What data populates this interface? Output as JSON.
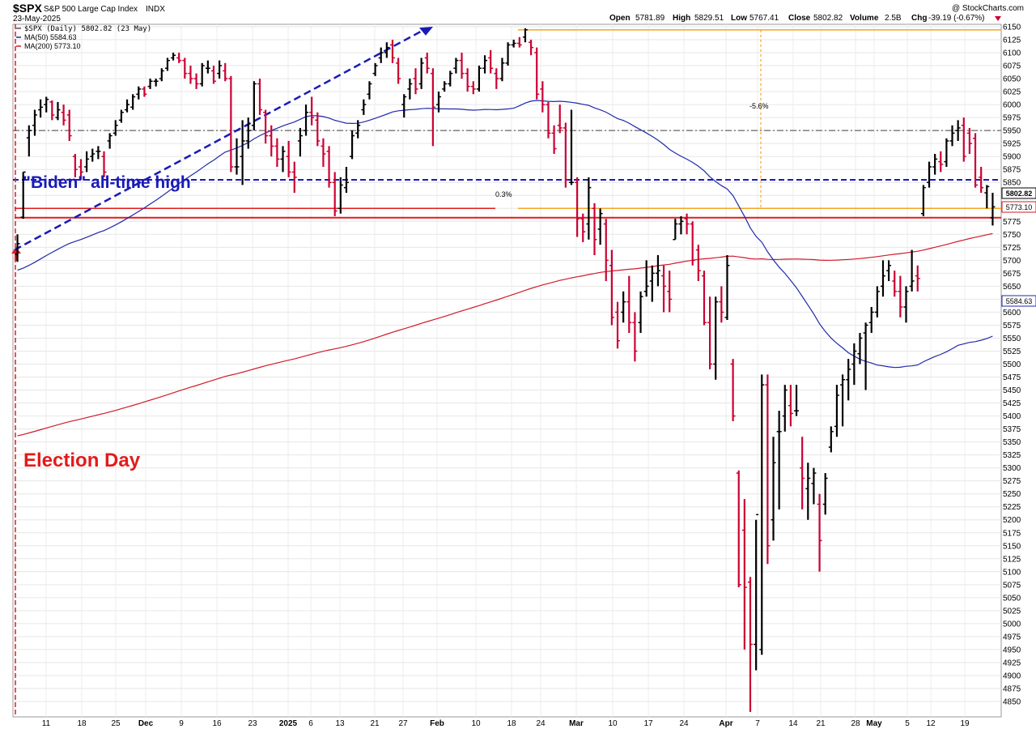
{
  "header": {
    "symbol": "$SPX",
    "name": "S&P 500 Large Cap Index",
    "exchange": "INDX",
    "date": "23-May-2025",
    "copyright": "@ StockCharts.com",
    "ohlc": {
      "open_label": "Open",
      "open": "5781.89",
      "high_label": "High",
      "high": "5829.51",
      "low_label": "Low",
      "low": "5767.41",
      "close_label": "Close",
      "close": "5802.82",
      "volume_label": "Volume",
      "volume": "2.5B",
      "chg_label": "Chg",
      "chg": "-39.19 (-0.67%)"
    }
  },
  "legend": {
    "price": "$SPX (Daily) 5802.82 (23 May)",
    "ma50": "MA(50) 5584.63",
    "ma200": "MA(200) 5773.10"
  },
  "annotations": {
    "biden_high": "\"Biden\" all-time high",
    "election_day": "Election Day",
    "drawdown_pct": "-5.6%",
    "gap_pct": "0.3%"
  },
  "price_labels": {
    "last": "5802.82",
    "ma200": "5773.10",
    "ma50": "5584.63"
  },
  "colors": {
    "up_bar": "#000000",
    "down_bar": "#cc0033",
    "ma50": "#1f2aa8",
    "ma200": "#d11a2a",
    "biden_line": "#1a1ab8",
    "support_line": "#e21b1b",
    "fib_line": "#f5a623",
    "midline": "#666666",
    "election_text": "#e31b1b",
    "biden_text": "#1a1ab8"
  },
  "chart_data": {
    "type": "ohlc",
    "ylim": [
      4820,
      6160
    ],
    "y_ticks": [
      4850,
      4875,
      4900,
      4925,
      4950,
      4975,
      5000,
      5025,
      5050,
      5075,
      5100,
      5125,
      5150,
      5175,
      5200,
      5225,
      5250,
      5275,
      5300,
      5325,
      5350,
      5375,
      5400,
      5425,
      5450,
      5475,
      5500,
      5525,
      5550,
      5575,
      5600,
      5625,
      5650,
      5675,
      5700,
      5725,
      5750,
      5775,
      5800,
      5825,
      5850,
      5875,
      5900,
      5925,
      5950,
      5975,
      6000,
      6025,
      6050,
      6075,
      6100,
      6125,
      6150
    ],
    "x_ticks": [
      "11",
      "18",
      "25",
      "Dec",
      "9",
      "16",
      "23",
      "2025",
      "6",
      "13",
      "21",
      "27",
      "Feb",
      "10",
      "18",
      "24",
      "Mar",
      "10",
      "17",
      "24",
      "Apr",
      "7",
      "14",
      "21",
      "28",
      "May",
      "5",
      "12",
      "19"
    ],
    "bars": [
      {
        "o": 5712,
        "h": 5750,
        "l": 5697,
        "c": 5732
      },
      {
        "o": 5783,
        "h": 5870,
        "l": 5780,
        "c": 5870
      },
      {
        "o": 5936,
        "h": 5960,
        "l": 5900,
        "c": 5950
      },
      {
        "o": 5960,
        "h": 5990,
        "l": 5940,
        "c": 5980
      },
      {
        "o": 5990,
        "h": 6010,
        "l": 5975,
        "c": 5995
      },
      {
        "o": 6000,
        "h": 6015,
        "l": 5985,
        "c": 6010
      },
      {
        "o": 6005,
        "h": 6008,
        "l": 5970,
        "c": 5980
      },
      {
        "o": 5975,
        "h": 6005,
        "l": 5970,
        "c": 5990
      },
      {
        "o": 5985,
        "h": 6000,
        "l": 5960,
        "c": 5970
      },
      {
        "o": 5980,
        "h": 5990,
        "l": 5930,
        "c": 5940
      },
      {
        "o": 5900,
        "h": 5905,
        "l": 5860,
        "c": 5875
      },
      {
        "o": 5880,
        "h": 5895,
        "l": 5855,
        "c": 5870
      },
      {
        "o": 5880,
        "h": 5910,
        "l": 5870,
        "c": 5895
      },
      {
        "o": 5900,
        "h": 5915,
        "l": 5890,
        "c": 5905
      },
      {
        "o": 5910,
        "h": 5920,
        "l": 5895,
        "c": 5910
      },
      {
        "o": 5900,
        "h": 5910,
        "l": 5860,
        "c": 5870
      },
      {
        "o": 5930,
        "h": 5945,
        "l": 5915,
        "c": 5940
      },
      {
        "o": 5945,
        "h": 5970,
        "l": 5940,
        "c": 5960
      },
      {
        "o": 5970,
        "h": 5990,
        "l": 5965,
        "c": 5985
      },
      {
        "o": 5990,
        "h": 6010,
        "l": 5985,
        "c": 6000
      },
      {
        "o": 5995,
        "h": 6020,
        "l": 5990,
        "c": 6015
      },
      {
        "o": 6020,
        "h": 6035,
        "l": 6010,
        "c": 6030
      },
      {
        "o": 6030,
        "h": 6035,
        "l": 6015,
        "c": 6020
      },
      {
        "o": 6035,
        "h": 6050,
        "l": 6030,
        "c": 6045
      },
      {
        "o": 6045,
        "h": 6050,
        "l": 6035,
        "c": 6045
      },
      {
        "o": 6050,
        "h": 6070,
        "l": 6045,
        "c": 6065
      },
      {
        "o": 6070,
        "h": 6090,
        "l": 6065,
        "c": 6085
      },
      {
        "o": 6090,
        "h": 6100,
        "l": 6085,
        "c": 6095
      },
      {
        "o": 6090,
        "h": 6100,
        "l": 6080,
        "c": 6085
      },
      {
        "o": 6085,
        "h": 6090,
        "l": 6050,
        "c": 6060
      },
      {
        "o": 6060,
        "h": 6075,
        "l": 6040,
        "c": 6050
      },
      {
        "o": 6050,
        "h": 6060,
        "l": 6030,
        "c": 6040
      },
      {
        "o": 6040,
        "h": 6080,
        "l": 6035,
        "c": 6075
      },
      {
        "o": 6070,
        "h": 6085,
        "l": 6060,
        "c": 6070
      },
      {
        "o": 6065,
        "h": 6075,
        "l": 6040,
        "c": 6045
      },
      {
        "o": 6060,
        "h": 6085,
        "l": 6050,
        "c": 6075
      },
      {
        "o": 6065,
        "h": 6080,
        "l": 6045,
        "c": 6050
      },
      {
        "o": 6050,
        "h": 6055,
        "l": 5870,
        "c": 5880
      },
      {
        "o": 5880,
        "h": 5935,
        "l": 5865,
        "c": 5880
      },
      {
        "o": 5900,
        "h": 5970,
        "l": 5845,
        "c": 5930
      },
      {
        "o": 5930,
        "h": 5975,
        "l": 5915,
        "c": 5950
      },
      {
        "o": 5960,
        "h": 6045,
        "l": 5950,
        "c": 6040
      },
      {
        "o": 6040,
        "h": 6050,
        "l": 5980,
        "c": 5990
      },
      {
        "o": 5985,
        "h": 5990,
        "l": 5925,
        "c": 5940
      },
      {
        "o": 5940,
        "h": 5960,
        "l": 5900,
        "c": 5920
      },
      {
        "o": 5920,
        "h": 5935,
        "l": 5880,
        "c": 5895
      },
      {
        "o": 5895,
        "h": 5920,
        "l": 5870,
        "c": 5910
      },
      {
        "o": 5900,
        "h": 5930,
        "l": 5860,
        "c": 5870
      },
      {
        "o": 5870,
        "h": 5890,
        "l": 5830,
        "c": 5860
      },
      {
        "o": 5930,
        "h": 5955,
        "l": 5900,
        "c": 5940
      },
      {
        "o": 5950,
        "h": 6000,
        "l": 5940,
        "c": 5985
      },
      {
        "o": 5985,
        "h": 6015,
        "l": 5960,
        "c": 5975
      },
      {
        "o": 5970,
        "h": 5985,
        "l": 5920,
        "c": 5930
      },
      {
        "o": 5920,
        "h": 5935,
        "l": 5880,
        "c": 5905
      },
      {
        "o": 5910,
        "h": 5920,
        "l": 5840,
        "c": 5850
      },
      {
        "o": 5850,
        "h": 5870,
        "l": 5785,
        "c": 5795
      },
      {
        "o": 5800,
        "h": 5860,
        "l": 5790,
        "c": 5845
      },
      {
        "o": 5840,
        "h": 5880,
        "l": 5830,
        "c": 5850
      },
      {
        "o": 5900,
        "h": 5950,
        "l": 5895,
        "c": 5940
      },
      {
        "o": 5945,
        "h": 5970,
        "l": 5935,
        "c": 5960
      },
      {
        "o": 5990,
        "h": 6010,
        "l": 5980,
        "c": 6000
      },
      {
        "o": 6020,
        "h": 6045,
        "l": 6010,
        "c": 6040
      },
      {
        "o": 6060,
        "h": 6080,
        "l": 6055,
        "c": 6075
      },
      {
        "o": 6090,
        "h": 6110,
        "l": 6080,
        "c": 6100
      },
      {
        "o": 6100,
        "h": 6120,
        "l": 6090,
        "c": 6110
      },
      {
        "o": 6115,
        "h": 6125,
        "l": 6080,
        "c": 6090
      },
      {
        "o": 6080,
        "h": 6090,
        "l": 6040,
        "c": 6050
      },
      {
        "o": 6000,
        "h": 6020,
        "l": 5975,
        "c": 6015
      },
      {
        "o": 6030,
        "h": 6050,
        "l": 6010,
        "c": 6040
      },
      {
        "o": 6050,
        "h": 6070,
        "l": 6020,
        "c": 6030
      },
      {
        "o": 6040,
        "h": 6090,
        "l": 6030,
        "c": 6080
      },
      {
        "o": 6090,
        "h": 6100,
        "l": 6060,
        "c": 6070
      },
      {
        "o": 6060,
        "h": 6070,
        "l": 5920,
        "c": 5995
      },
      {
        "o": 6000,
        "h": 6025,
        "l": 5985,
        "c": 6015
      },
      {
        "o": 6030,
        "h": 6045,
        "l": 6025,
        "c": 6040
      },
      {
        "o": 6040,
        "h": 6065,
        "l": 6035,
        "c": 6060
      },
      {
        "o": 6070,
        "h": 6090,
        "l": 6060,
        "c": 6085
      },
      {
        "o": 6085,
        "h": 6100,
        "l": 6050,
        "c": 6060
      },
      {
        "o": 6060,
        "h": 6070,
        "l": 6025,
        "c": 6035
      },
      {
        "o": 6035,
        "h": 6045,
        "l": 6020,
        "c": 6030
      },
      {
        "o": 6030,
        "h": 6075,
        "l": 6025,
        "c": 6070
      },
      {
        "o": 6070,
        "h": 6095,
        "l": 6060,
        "c": 6085
      },
      {
        "o": 6090,
        "h": 6105,
        "l": 6060,
        "c": 6070
      },
      {
        "o": 6060,
        "h": 6070,
        "l": 6030,
        "c": 6050
      },
      {
        "o": 6050,
        "h": 6090,
        "l": 6045,
        "c": 6080
      },
      {
        "o": 6080,
        "h": 6120,
        "l": 6075,
        "c": 6115
      },
      {
        "o": 6115,
        "h": 6125,
        "l": 6110,
        "c": 6118
      },
      {
        "o": 6118,
        "h": 6130,
        "l": 6110,
        "c": 6115
      },
      {
        "o": 6130,
        "h": 6147,
        "l": 6120,
        "c": 6144
      },
      {
        "o": 6120,
        "h": 6125,
        "l": 6095,
        "c": 6110
      },
      {
        "o": 6100,
        "h": 6110,
        "l": 6010,
        "c": 6020
      },
      {
        "o": 6030,
        "h": 6045,
        "l": 5985,
        "c": 6000
      },
      {
        "o": 6000,
        "h": 6005,
        "l": 5935,
        "c": 5945
      },
      {
        "o": 5945,
        "h": 5960,
        "l": 5905,
        "c": 5915
      },
      {
        "o": 5960,
        "h": 6000,
        "l": 5945,
        "c": 5955
      },
      {
        "o": 5955,
        "h": 5965,
        "l": 5840,
        "c": 5855
      },
      {
        "o": 5850,
        "h": 5990,
        "l": 5845,
        "c": 5850
      },
      {
        "o": 5850,
        "h": 5860,
        "l": 5745,
        "c": 5780
      },
      {
        "o": 5780,
        "h": 5790,
        "l": 5735,
        "c": 5755
      },
      {
        "o": 5770,
        "h": 5860,
        "l": 5740,
        "c": 5840
      },
      {
        "o": 5800,
        "h": 5810,
        "l": 5710,
        "c": 5740
      },
      {
        "o": 5760,
        "h": 5800,
        "l": 5730,
        "c": 5790
      },
      {
        "o": 5770,
        "h": 5780,
        "l": 5660,
        "c": 5700
      },
      {
        "o": 5690,
        "h": 5720,
        "l": 5575,
        "c": 5590
      },
      {
        "o": 5600,
        "h": 5620,
        "l": 5530,
        "c": 5545
      },
      {
        "o": 5600,
        "h": 5640,
        "l": 5580,
        "c": 5620
      },
      {
        "o": 5620,
        "h": 5670,
        "l": 5560,
        "c": 5580
      },
      {
        "o": 5580,
        "h": 5600,
        "l": 5505,
        "c": 5525
      },
      {
        "o": 5580,
        "h": 5640,
        "l": 5560,
        "c": 5630
      },
      {
        "o": 5640,
        "h": 5700,
        "l": 5630,
        "c": 5650
      },
      {
        "o": 5660,
        "h": 5690,
        "l": 5620,
        "c": 5675
      },
      {
        "o": 5675,
        "h": 5710,
        "l": 5650,
        "c": 5680
      },
      {
        "o": 5670,
        "h": 5690,
        "l": 5600,
        "c": 5650
      },
      {
        "o": 5640,
        "h": 5680,
        "l": 5600,
        "c": 5625
      },
      {
        "o": 5740,
        "h": 5780,
        "l": 5740,
        "c": 5770
      },
      {
        "o": 5770,
        "h": 5785,
        "l": 5750,
        "c": 5775
      },
      {
        "o": 5780,
        "h": 5790,
        "l": 5750,
        "c": 5770
      },
      {
        "o": 5770,
        "h": 5775,
        "l": 5690,
        "c": 5700
      },
      {
        "o": 5720,
        "h": 5730,
        "l": 5660,
        "c": 5680
      },
      {
        "o": 5670,
        "h": 5680,
        "l": 5575,
        "c": 5580
      },
      {
        "o": 5580,
        "h": 5630,
        "l": 5490,
        "c": 5500
      },
      {
        "o": 5500,
        "h": 5630,
        "l": 5470,
        "c": 5620
      },
      {
        "o": 5620,
        "h": 5650,
        "l": 5580,
        "c": 5600
      },
      {
        "o": 5590,
        "h": 5710,
        "l": 5585,
        "c": 5690
      },
      {
        "o": 5500,
        "h": 5510,
        "l": 5390,
        "c": 5400
      },
      {
        "o": 5290,
        "h": 5295,
        "l": 5070,
        "c": 5075
      },
      {
        "o": 5180,
        "h": 5240,
        "l": 4950,
        "c": 5070
      },
      {
        "o": 5080,
        "h": 5090,
        "l": 4830,
        "c": 4960
      },
      {
        "o": 4960,
        "h": 5200,
        "l": 4910,
        "c": 5210
      },
      {
        "o": 4950,
        "h": 5480,
        "l": 4940,
        "c": 5460
      },
      {
        "o": 5460,
        "h": 5480,
        "l": 5115,
        "c": 5150
      },
      {
        "o": 5200,
        "h": 5360,
        "l": 5160,
        "c": 5310
      },
      {
        "o": 5370,
        "h": 5410,
        "l": 5220,
        "c": 5370
      },
      {
        "o": 5400,
        "h": 5460,
        "l": 5370,
        "c": 5450
      },
      {
        "o": 5420,
        "h": 5460,
        "l": 5380,
        "c": 5405
      },
      {
        "o": 5410,
        "h": 5460,
        "l": 5400,
        "c": 5410
      },
      {
        "o": 5300,
        "h": 5360,
        "l": 5220,
        "c": 5280
      },
      {
        "o": 5260,
        "h": 5310,
        "l": 5200,
        "c": 5280
      },
      {
        "o": 5270,
        "h": 5300,
        "l": 5230,
        "c": 5290
      },
      {
        "o": 5230,
        "h": 5250,
        "l": 5100,
        "c": 5160
      },
      {
        "o": 5230,
        "h": 5290,
        "l": 5210,
        "c": 5280
      },
      {
        "o": 5340,
        "h": 5380,
        "l": 5330,
        "c": 5370
      },
      {
        "o": 5380,
        "h": 5460,
        "l": 5360,
        "c": 5440
      },
      {
        "o": 5460,
        "h": 5480,
        "l": 5380,
        "c": 5470
      },
      {
        "o": 5470,
        "h": 5510,
        "l": 5430,
        "c": 5490
      },
      {
        "o": 5500,
        "h": 5540,
        "l": 5460,
        "c": 5525
      },
      {
        "o": 5520,
        "h": 5560,
        "l": 5500,
        "c": 5550
      },
      {
        "o": 5560,
        "h": 5580,
        "l": 5450,
        "c": 5575
      },
      {
        "o": 5580,
        "h": 5610,
        "l": 5560,
        "c": 5600
      },
      {
        "o": 5600,
        "h": 5650,
        "l": 5590,
        "c": 5640
      },
      {
        "o": 5650,
        "h": 5700,
        "l": 5630,
        "c": 5670
      },
      {
        "o": 5680,
        "h": 5700,
        "l": 5660,
        "c": 5690
      },
      {
        "o": 5660,
        "h": 5680,
        "l": 5630,
        "c": 5640
      },
      {
        "o": 5640,
        "h": 5670,
        "l": 5590,
        "c": 5610
      },
      {
        "o": 5610,
        "h": 5650,
        "l": 5580,
        "c": 5640
      },
      {
        "o": 5650,
        "h": 5720,
        "l": 5640,
        "c": 5660
      },
      {
        "o": 5670,
        "h": 5690,
        "l": 5640,
        "c": 5665
      },
      {
        "o": 5790,
        "h": 5845,
        "l": 5785,
        "c": 5840
      },
      {
        "o": 5850,
        "h": 5890,
        "l": 5840,
        "c": 5880
      },
      {
        "o": 5880,
        "h": 5905,
        "l": 5865,
        "c": 5895
      },
      {
        "o": 5890,
        "h": 5910,
        "l": 5870,
        "c": 5885
      },
      {
        "o": 5890,
        "h": 5935,
        "l": 5880,
        "c": 5930
      },
      {
        "o": 5930,
        "h": 5960,
        "l": 5920,
        "c": 5945
      },
      {
        "o": 5950,
        "h": 5970,
        "l": 5930,
        "c": 5955
      },
      {
        "o": 5960,
        "h": 5975,
        "l": 5890,
        "c": 5900
      },
      {
        "o": 5945,
        "h": 5955,
        "l": 5905,
        "c": 5925
      },
      {
        "o": 5935,
        "h": 5945,
        "l": 5840,
        "c": 5845
      },
      {
        "o": 5860,
        "h": 5880,
        "l": 5830,
        "c": 5840
      },
      {
        "o": 5830,
        "h": 5845,
        "l": 5800,
        "c": 5842
      },
      {
        "o": 5782,
        "h": 5830,
        "l": 5767,
        "c": 5803
      }
    ]
  }
}
